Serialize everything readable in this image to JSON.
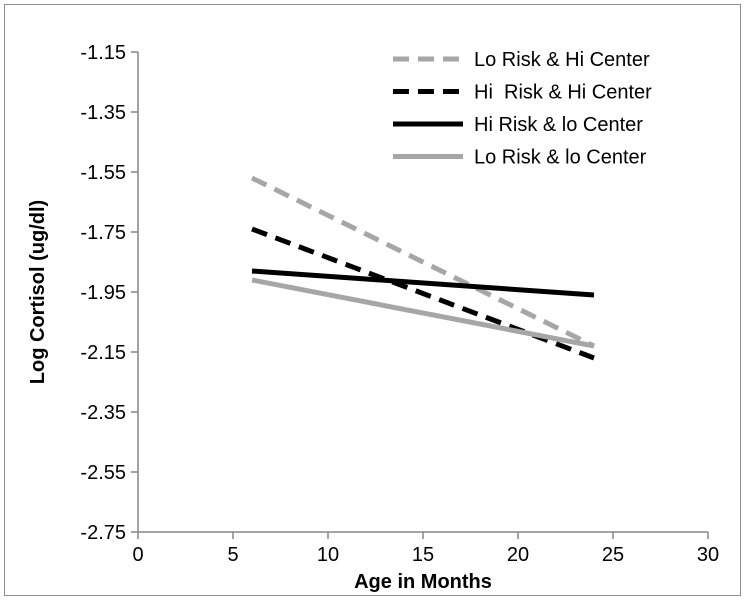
{
  "chart_data": {
    "type": "line",
    "xlabel": "Age in Months",
    "ylabel": "Log Cortisol (ug/dl)",
    "xlim": [
      0,
      30
    ],
    "ylim": [
      -2.75,
      -1.15
    ],
    "x_ticks": [
      "0",
      "5",
      "10",
      "15",
      "20",
      "25",
      "30"
    ],
    "y_ticks": [
      "-1.15",
      "-1.35",
      "-1.55",
      "-1.75",
      "-1.95",
      "-2.15",
      "-2.35",
      "-2.55",
      "-2.75"
    ],
    "grid": false,
    "legend_position": "top-right",
    "series": [
      {
        "name": "Lo Risk & Hi Center",
        "x": [
          6,
          24
        ],
        "y": [
          -1.57,
          -2.13
        ],
        "color": "#a6a6a6",
        "dash": "dashed"
      },
      {
        "name": "Hi  Risk & Hi Center",
        "x": [
          6,
          24
        ],
        "y": [
          -1.74,
          -2.17
        ],
        "color": "#000000",
        "dash": "dashed"
      },
      {
        "name": "Hi Risk & lo Center",
        "x": [
          6,
          24
        ],
        "y": [
          -1.88,
          -1.96
        ],
        "color": "#000000",
        "dash": "solid"
      },
      {
        "name": "Lo Risk & lo Center",
        "x": [
          6,
          24
        ],
        "y": [
          -1.91,
          -2.13
        ],
        "color": "#a6a6a6",
        "dash": "solid"
      }
    ]
  }
}
